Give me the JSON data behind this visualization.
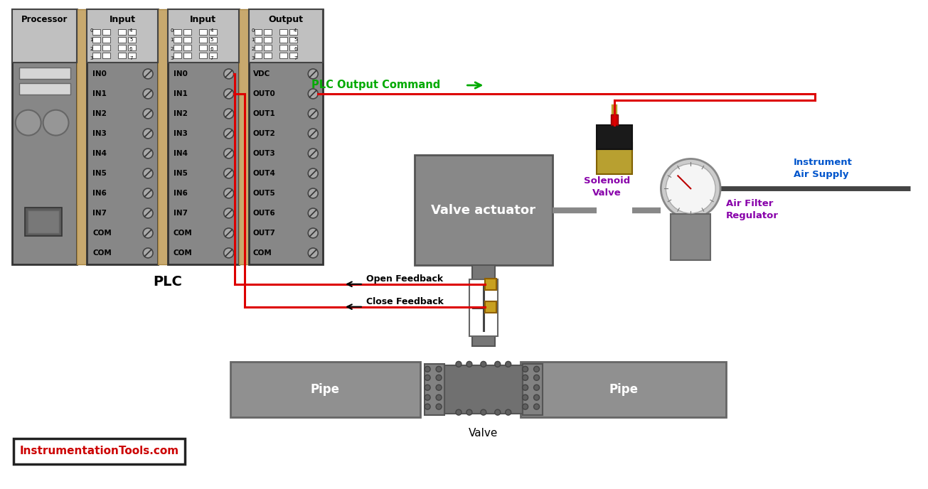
{
  "bg_color": "#ffffff",
  "plc_body_color": "#808080",
  "plc_border_color": "#333333",
  "plc_separator_color": "#c8a96e",
  "plc_header_bg": "#c8c8c8",
  "text_color": "#000000",
  "red_wire": "#dd0000",
  "green_text": "#00aa00",
  "blue_text": "#0055cc",
  "purple_text": "#8800aa",
  "actuator_color": "#888888",
  "pipe_color": "#909090",
  "feedback_dot_color": "#c8a020",
  "title": "PLC",
  "plc_output_label": "PLC Output Command",
  "open_feedback_label": "Open Feedback",
  "close_feedback_label": "Close Feedback",
  "valve_actuator_label": "Valve actuator",
  "solenoid_label": "Solenoid\nValve",
  "air_filter_label": "Air Filter\nRegulator",
  "instrument_air_label": "Instrument\nAir Supply",
  "pipe_label": "Pipe",
  "valve_label": "Valve",
  "website_label": "InstrumentationTools.com",
  "processor_label": "Processor",
  "input_label": "Input",
  "output_label": "Output",
  "input_rows": [
    "IN0",
    "IN1",
    "IN2",
    "IN3",
    "IN4",
    "IN5",
    "IN6",
    "IN7",
    "COM",
    "COM"
  ],
  "output_rows": [
    "VDC",
    "OUT0",
    "OUT1",
    "OUT2",
    "OUT3",
    "OUT4",
    "OUT5",
    "OUT6",
    "OUT7",
    "COM"
  ]
}
